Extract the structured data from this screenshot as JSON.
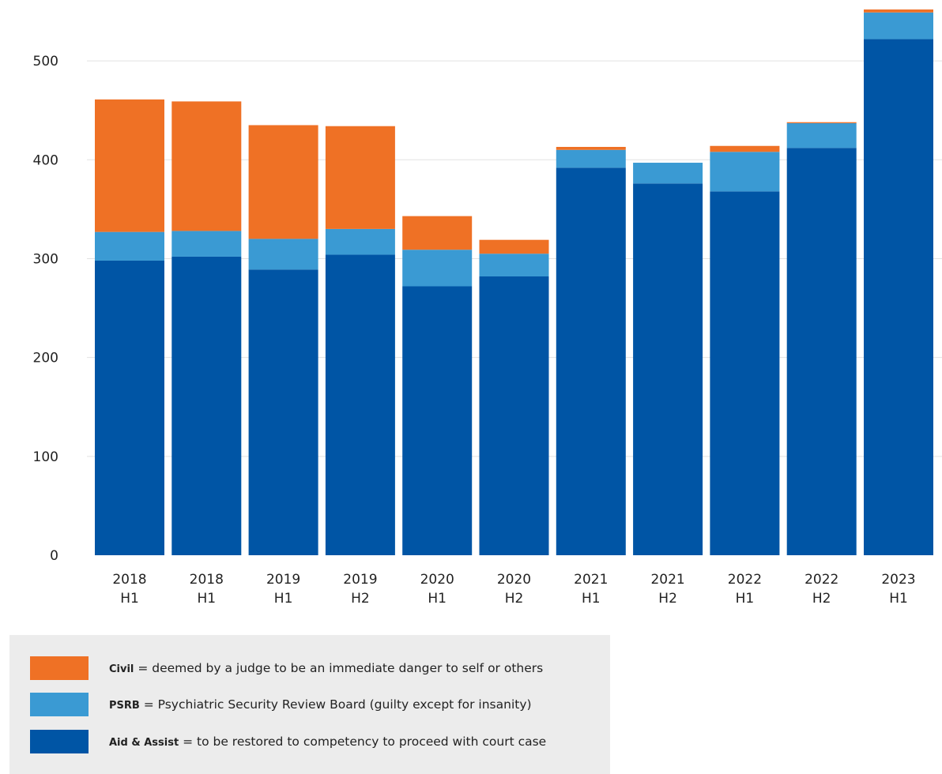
{
  "chart_data": {
    "type": "bar",
    "stacked": true,
    "categories": [
      [
        "2018",
        "H1"
      ],
      [
        "2018",
        "H1"
      ],
      [
        "2019",
        "H1"
      ],
      [
        "2019",
        "H2"
      ],
      [
        "2020",
        "H1"
      ],
      [
        "2020",
        "H2"
      ],
      [
        "2021",
        "H1"
      ],
      [
        "2021",
        "H2"
      ],
      [
        "2022",
        "H1"
      ],
      [
        "2022",
        "H2"
      ],
      [
        "2023",
        "H1"
      ]
    ],
    "series": [
      {
        "key": "aid",
        "color": "#0055a5",
        "values": [
          298,
          302,
          289,
          304,
          272,
          282,
          392,
          376,
          368,
          412,
          522
        ]
      },
      {
        "key": "psrb",
        "color": "#3a9ad3",
        "values": [
          29,
          26,
          31,
          26,
          37,
          23,
          18,
          21,
          40,
          25,
          27
        ]
      },
      {
        "key": "civil",
        "color": "#ef7125",
        "values": [
          134,
          131,
          115,
          104,
          34,
          14,
          3,
          0,
          6,
          1,
          3
        ]
      }
    ],
    "yticks": [
      0,
      100,
      200,
      300,
      400,
      500
    ],
    "ylim": [
      0,
      552
    ],
    "grid": true,
    "legend_position": "bottom-left"
  },
  "legend": {
    "items": [
      {
        "key": "civil",
        "color": "#ef7125",
        "term": "Civil",
        "description": " = deemed by a judge to be an immediate danger to self or others"
      },
      {
        "key": "psrb",
        "color": "#3a9ad3",
        "term": "PSRB",
        "description": " = Psychiatric Security Review Board (guilty except for insanity)"
      },
      {
        "key": "aid",
        "color": "#0055a5",
        "term": "Aid & Assist",
        "description": " = to be restored to competency to proceed with court case"
      }
    ]
  }
}
